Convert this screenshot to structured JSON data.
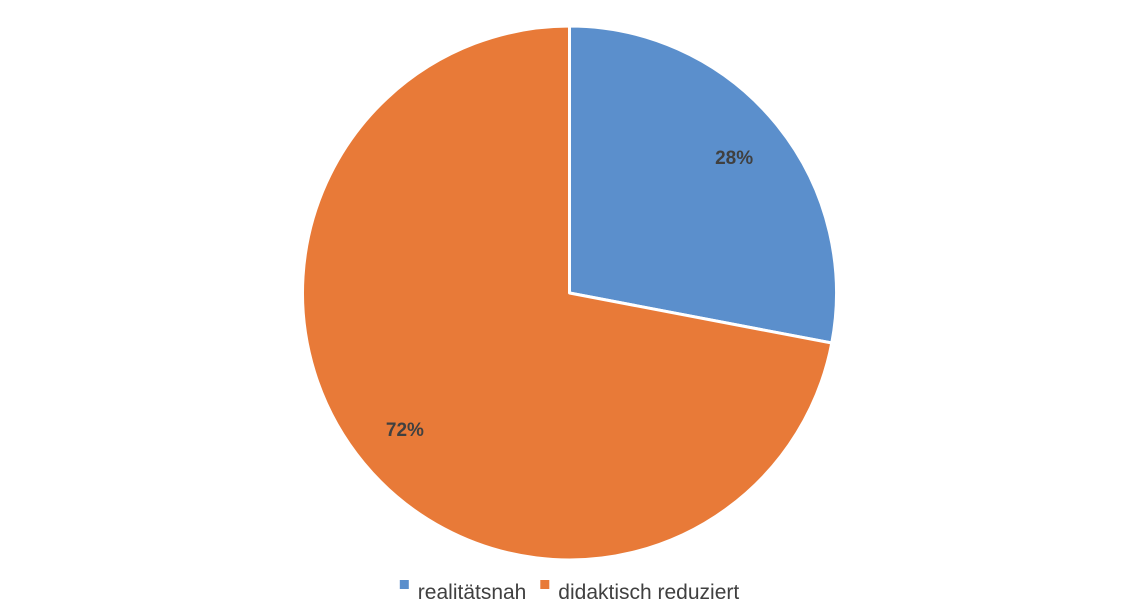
{
  "chart_data": {
    "type": "pie",
    "categories": [
      "realitätsnah",
      "didaktisch reduziert"
    ],
    "values": [
      28,
      72
    ],
    "labels": [
      "28%",
      "72%"
    ],
    "colors": [
      "#5B8FCC",
      "#E87A38"
    ],
    "start_angle_deg": 0,
    "direction": "clockwise",
    "legend_position": "bottom",
    "title": ""
  }
}
